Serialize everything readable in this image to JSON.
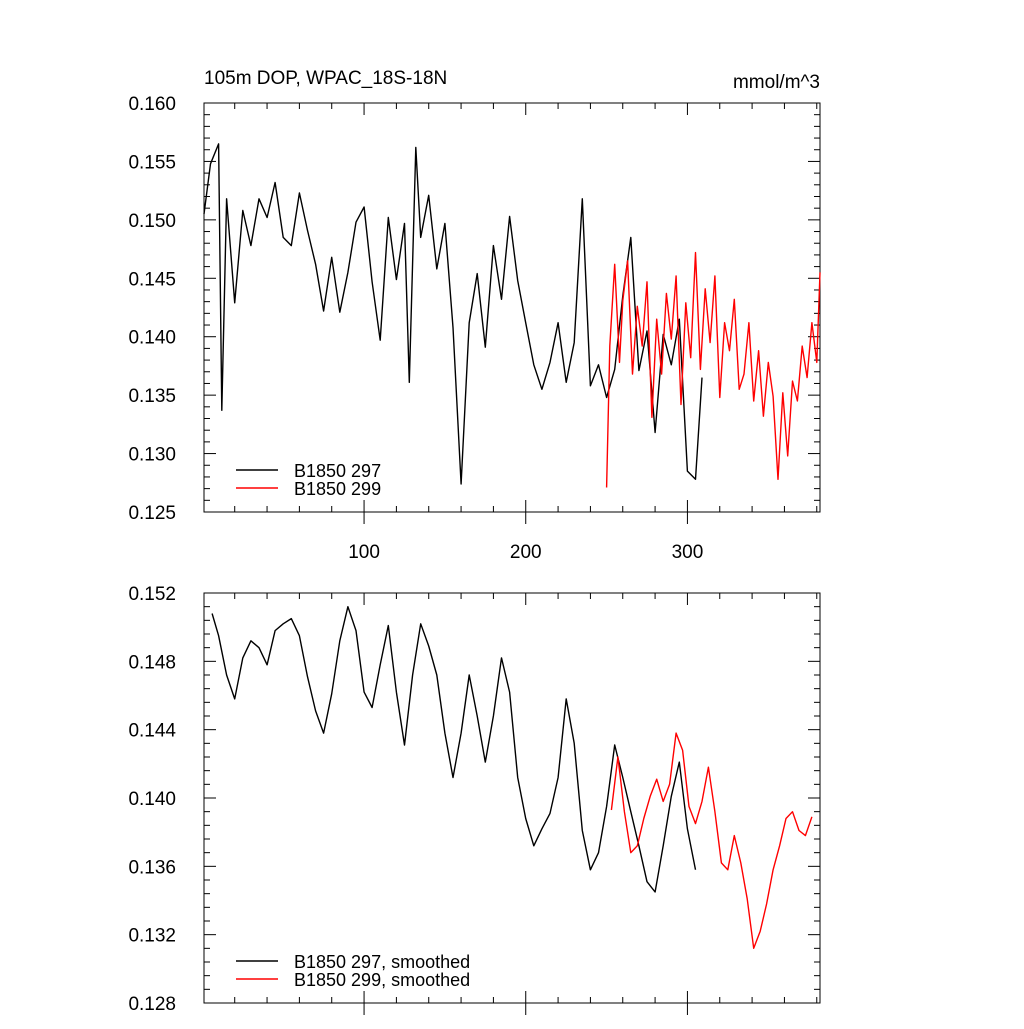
{
  "colors": {
    "series_1": "#000000",
    "series_2": "#ff0000",
    "axis": "#000000",
    "background": "#ffffff"
  },
  "chart_data": [
    {
      "type": "line",
      "title": "105m DOP, WPAC_18S-18N",
      "units": "mmol/m^3",
      "xlim": [
        1,
        382
      ],
      "ylim": [
        0.125,
        0.16
      ],
      "yticks": [
        "0.160",
        "0.155",
        "0.150",
        "0.145",
        "0.140",
        "0.135",
        "0.130",
        "0.125"
      ],
      "yticks_values": [
        0.16,
        0.155,
        0.15,
        0.145,
        0.14,
        0.135,
        0.13,
        0.125
      ],
      "xticks": [
        "100",
        "200",
        "300"
      ],
      "xticks_values": [
        100,
        200,
        300
      ],
      "grid": false,
      "legend_position": "bottom-left",
      "series": [
        {
          "name": "B1850 297",
          "color": "#000000",
          "x": [
            1,
            5,
            10,
            12,
            15,
            20,
            25,
            30,
            35,
            40,
            45,
            50,
            55,
            60,
            65,
            70,
            75,
            80,
            85,
            90,
            95,
            100,
            105,
            110,
            115,
            120,
            125,
            128,
            132,
            135,
            140,
            145,
            150,
            155,
            160,
            165,
            170,
            175,
            180,
            185,
            190,
            195,
            200,
            205,
            210,
            215,
            220,
            225,
            230,
            235,
            240,
            245,
            250,
            255,
            260,
            265,
            270,
            275,
            280,
            285,
            290,
            295,
            300,
            305,
            309
          ],
          "values": [
            0.1505,
            0.1548,
            0.1565,
            0.1337,
            0.1518,
            0.1429,
            0.1508,
            0.1478,
            0.1518,
            0.1502,
            0.1532,
            0.1485,
            0.1478,
            0.1523,
            0.1491,
            0.1462,
            0.1422,
            0.1468,
            0.1421,
            0.1455,
            0.1498,
            0.1511,
            0.1447,
            0.1397,
            0.1502,
            0.1449,
            0.1497,
            0.1361,
            0.1562,
            0.1485,
            0.1521,
            0.1458,
            0.1497,
            0.1408,
            0.1274,
            0.1412,
            0.1454,
            0.1391,
            0.1478,
            0.1432,
            0.1503,
            0.1448,
            0.1412,
            0.1376,
            0.1355,
            0.1378,
            0.1412,
            0.1361,
            0.1395,
            0.1518,
            0.1358,
            0.1376,
            0.1348,
            0.1372,
            0.1435,
            0.1485,
            0.1371,
            0.1405,
            0.1318,
            0.1402,
            0.1376,
            0.1415,
            0.1285,
            0.1278,
            0.1365
          ]
        },
        {
          "name": "B1850 299",
          "color": "#ff0000",
          "x": [
            250,
            252,
            255,
            258,
            260,
            263,
            266,
            269,
            272,
            275,
            278,
            281,
            284,
            287,
            290,
            293,
            296,
            299,
            302,
            305,
            308,
            311,
            314,
            317,
            320,
            323,
            326,
            329,
            332,
            335,
            338,
            341,
            344,
            347,
            350,
            353,
            356,
            359,
            362,
            365,
            368,
            371,
            374,
            377,
            380,
            382
          ],
          "values": [
            0.1271,
            0.1392,
            0.1462,
            0.1378,
            0.1431,
            0.1465,
            0.1368,
            0.1426,
            0.1392,
            0.1447,
            0.1331,
            0.1415,
            0.1368,
            0.1437,
            0.1398,
            0.1452,
            0.1342,
            0.1429,
            0.1382,
            0.1472,
            0.1372,
            0.1441,
            0.1395,
            0.1452,
            0.1348,
            0.1412,
            0.1388,
            0.1432,
            0.1355,
            0.1368,
            0.1412,
            0.1345,
            0.1388,
            0.1332,
            0.1378,
            0.1349,
            0.1278,
            0.1352,
            0.1298,
            0.1362,
            0.1345,
            0.1392,
            0.1365,
            0.1412,
            0.1378,
            0.1455
          ]
        }
      ]
    },
    {
      "type": "line",
      "xlim": [
        1,
        382
      ],
      "ylim": [
        0.128,
        0.152
      ],
      "yticks": [
        "0.152",
        "0.148",
        "0.144",
        "0.140",
        "0.136",
        "0.132",
        "0.128"
      ],
      "yticks_values": [
        0.152,
        0.148,
        0.144,
        0.14,
        0.136,
        0.132,
        0.128
      ],
      "grid": false,
      "legend_position": "bottom-left",
      "series": [
        {
          "name": "B1850 297, smoothed",
          "color": "#000000",
          "x": [
            6,
            10,
            15,
            20,
            25,
            30,
            35,
            40,
            45,
            50,
            55,
            60,
            65,
            70,
            75,
            80,
            85,
            90,
            95,
            100,
            105,
            110,
            115,
            120,
            125,
            130,
            135,
            140,
            145,
            150,
            155,
            160,
            165,
            170,
            175,
            180,
            185,
            190,
            195,
            200,
            205,
            210,
            215,
            220,
            225,
            230,
            235,
            240,
            245,
            250,
            255,
            260,
            265,
            270,
            275,
            280,
            285,
            290,
            295,
            300,
            305
          ],
          "values": [
            0.1508,
            0.1495,
            0.1472,
            0.1458,
            0.1482,
            0.1492,
            0.1488,
            0.1478,
            0.1498,
            0.1502,
            0.1505,
            0.1495,
            0.1471,
            0.1451,
            0.1438,
            0.1461,
            0.1492,
            0.1512,
            0.1498,
            0.1462,
            0.1453,
            0.1478,
            0.1501,
            0.1462,
            0.1431,
            0.1472,
            0.1502,
            0.1489,
            0.1472,
            0.1438,
            0.1412,
            0.1438,
            0.1472,
            0.1448,
            0.1421,
            0.1448,
            0.1482,
            0.1462,
            0.1412,
            0.1388,
            0.1372,
            0.1382,
            0.1391,
            0.1412,
            0.1458,
            0.1432,
            0.1381,
            0.1358,
            0.1368,
            0.1395,
            0.1431,
            0.1412,
            0.1392,
            0.1372,
            0.1351,
            0.1345,
            0.1372,
            0.1401,
            0.1421,
            0.1382,
            0.1358
          ]
        },
        {
          "name": "B1850 299, smoothed",
          "color": "#ff0000",
          "x": [
            253,
            257,
            261,
            265,
            269,
            273,
            277,
            281,
            285,
            289,
            293,
            297,
            301,
            305,
            309,
            313,
            317,
            321,
            325,
            329,
            333,
            337,
            341,
            345,
            349,
            353,
            357,
            361,
            365,
            369,
            373,
            377
          ],
          "values": [
            0.1393,
            0.1424,
            0.1392,
            0.1368,
            0.1372,
            0.1388,
            0.1401,
            0.1411,
            0.1398,
            0.1408,
            0.1438,
            0.1428,
            0.1395,
            0.1385,
            0.1398,
            0.1418,
            0.1392,
            0.1362,
            0.1358,
            0.1378,
            0.1362,
            0.1341,
            0.1312,
            0.1322,
            0.1338,
            0.1358,
            0.1372,
            0.1388,
            0.1392,
            0.1381,
            0.1378,
            0.1389
          ]
        }
      ]
    }
  ]
}
